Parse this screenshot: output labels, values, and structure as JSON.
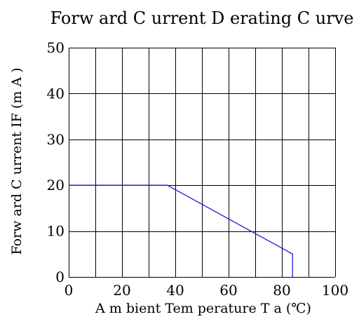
{
  "chart_data": {
    "type": "line",
    "title": "Forw ard C urrent D erating C urve",
    "xlabel": "A m bient Tem perature T a (℃)",
    "ylabel": "Forw ard C urrent IF (m A )",
    "xlim": [
      0,
      100
    ],
    "ylim": [
      0,
      50
    ],
    "xticks": [
      "0",
      "20",
      "40",
      "60",
      "80",
      "100"
    ],
    "yticks": [
      "0",
      "10",
      "20",
      "30",
      "40",
      "50"
    ],
    "x_minor_grid_step": 10,
    "y_grid_step": 10,
    "grid": true,
    "line_color": "#1f1fd6",
    "grid_color": "#000000",
    "series": [
      {
        "x": [
          0,
          37,
          84,
          84
        ],
        "y": [
          20,
          20,
          5,
          0
        ]
      }
    ]
  }
}
